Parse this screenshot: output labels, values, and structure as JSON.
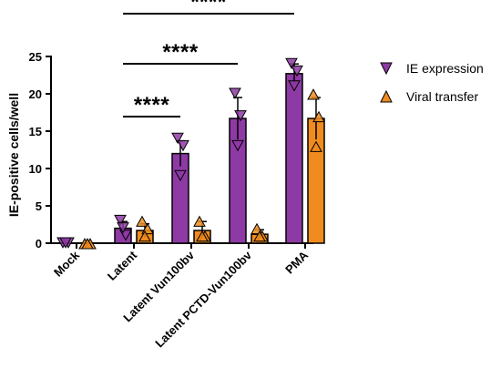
{
  "chart_data": {
    "type": "bar",
    "ylabel": "IE-positive cells/well",
    "xlabel": "",
    "ylim": [
      0,
      25
    ],
    "yticks": [
      0,
      5,
      10,
      15,
      20,
      25
    ],
    "categories": [
      "Mock",
      "Latent",
      "Latent Vun100bv",
      "Latent PCTD-Vun100bv",
      "PMA"
    ],
    "series": [
      {
        "name": "IE expression",
        "color": "#8e3aa5",
        "marker": "triangle-down",
        "values": [
          0,
          2,
          12,
          16.7,
          22.7
        ],
        "errors": [
          0,
          0.9,
          1.7,
          2.8,
          1.3
        ],
        "points": [
          [
            0,
            0,
            0
          ],
          [
            3,
            1,
            2
          ],
          [
            14,
            13,
            9
          ],
          [
            20,
            17,
            13
          ],
          [
            24,
            23,
            21
          ]
        ]
      },
      {
        "name": "Viral transfer",
        "color": "#f08c1e",
        "marker": "triangle-up",
        "values": [
          0,
          1.7,
          1.7,
          1.2,
          16.7
        ],
        "errors": [
          0,
          0.9,
          1.2,
          0.6,
          2.8
        ],
        "points": [
          [
            0,
            0,
            0
          ],
          [
            3,
            2,
            1
          ],
          [
            3,
            1,
            1
          ],
          [
            2,
            1,
            1
          ],
          [
            20,
            17,
            13
          ]
        ]
      }
    ],
    "significance": [
      {
        "from": "Latent",
        "to": "Latent Vun100bv",
        "label": "****"
      },
      {
        "from": "Latent",
        "to": "Latent PCTD-Vun100bv",
        "label": "****"
      },
      {
        "from": "Latent",
        "to": "PMA",
        "label": "****"
      }
    ],
    "legend": {
      "position": "right",
      "items": [
        "IE expression",
        "Viral transfer"
      ]
    }
  }
}
